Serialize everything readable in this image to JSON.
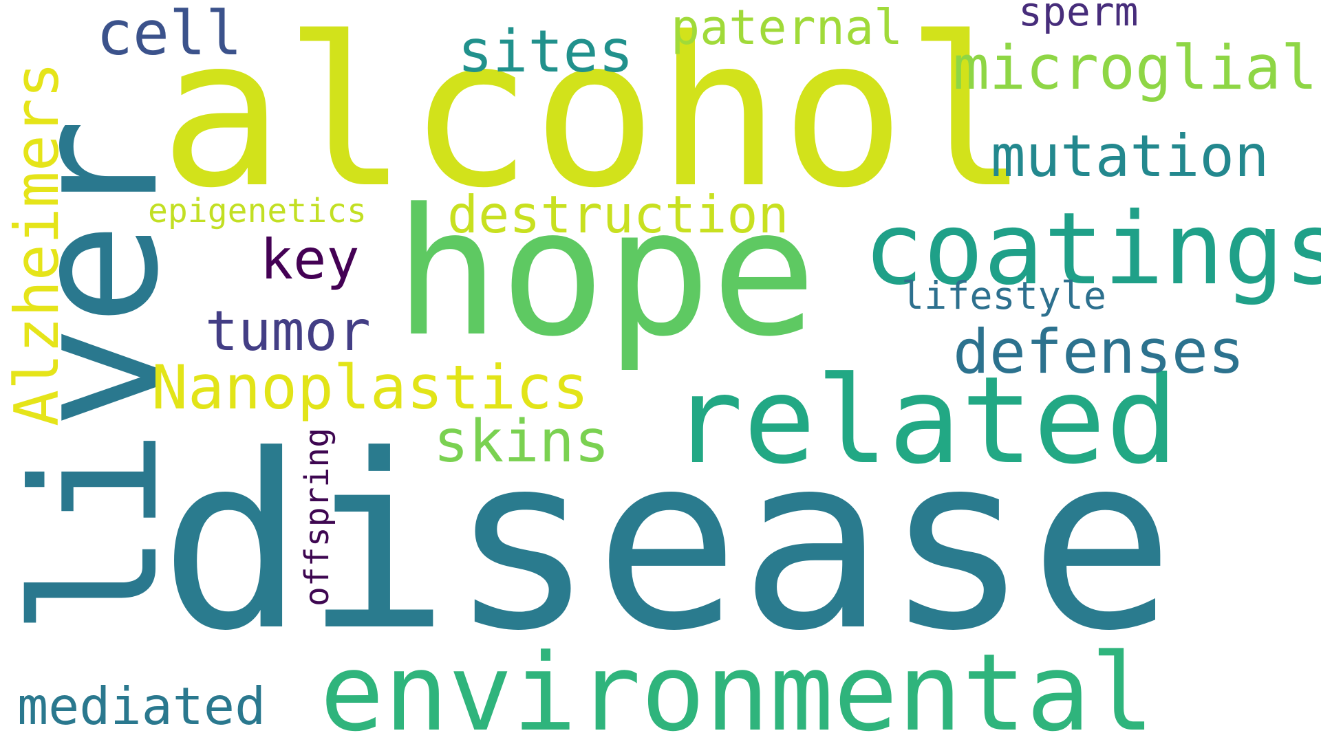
{
  "word_cloud": {
    "background": "#ffffff",
    "words": [
      {
        "key": "disease",
        "text": "disease",
        "color": "#2a7b8e",
        "orientation": "horizontal"
      },
      {
        "key": "alcohol",
        "text": "alcohol",
        "color": "#d2e21b",
        "orientation": "horizontal"
      },
      {
        "key": "hope",
        "text": "hope",
        "color": "#5ec962",
        "orientation": "horizontal"
      },
      {
        "key": "liver",
        "text": "liver",
        "color": "#2a788e",
        "orientation": "vertical"
      },
      {
        "key": "related",
        "text": "related",
        "color": "#22a884",
        "orientation": "horizontal"
      },
      {
        "key": "environmental",
        "text": "environmental",
        "color": "#2fb47c",
        "orientation": "horizontal"
      },
      {
        "key": "coatings",
        "text": "coatings",
        "color": "#1fa088",
        "orientation": "horizontal"
      },
      {
        "key": "microglial",
        "text": "microglial",
        "color": "#8ed645",
        "orientation": "horizontal"
      },
      {
        "key": "mutation",
        "text": "mutation",
        "color": "#23888e",
        "orientation": "horizontal"
      },
      {
        "key": "defenses",
        "text": "defenses",
        "color": "#2c728e",
        "orientation": "horizontal"
      },
      {
        "key": "nanoplastics",
        "text": "Nanoplastics",
        "color": "#e2e418",
        "orientation": "horizontal"
      },
      {
        "key": "destruction",
        "text": "destruction",
        "color": "#c8e020",
        "orientation": "horizontal"
      },
      {
        "key": "alzheimers",
        "text": "Alzheimers",
        "color": "#e5e419",
        "orientation": "vertical"
      },
      {
        "key": "sites",
        "text": "sites",
        "color": "#21918c",
        "orientation": "horizontal"
      },
      {
        "key": "paternal",
        "text": "paternal",
        "color": "#a0da39",
        "orientation": "horizontal"
      },
      {
        "key": "sperm",
        "text": "sperm",
        "color": "#472d7b",
        "orientation": "horizontal"
      },
      {
        "key": "cell",
        "text": "cell",
        "color": "#3b528b",
        "orientation": "horizontal"
      },
      {
        "key": "key",
        "text": "key",
        "color": "#440154",
        "orientation": "horizontal"
      },
      {
        "key": "tumor",
        "text": "tumor",
        "color": "#433e85",
        "orientation": "horizontal"
      },
      {
        "key": "skins",
        "text": "skins",
        "color": "#7ad151",
        "orientation": "horizontal"
      },
      {
        "key": "lifestyle",
        "text": "lifestyle",
        "color": "#2d708e",
        "orientation": "horizontal"
      },
      {
        "key": "epigenetics",
        "text": "epigenetics",
        "color": "#c2df23",
        "orientation": "horizontal"
      },
      {
        "key": "offspring",
        "text": "offspring",
        "color": "#3e0751",
        "orientation": "vertical"
      },
      {
        "key": "mediated",
        "text": "mediated",
        "color": "#2a788e",
        "orientation": "horizontal"
      }
    ]
  }
}
